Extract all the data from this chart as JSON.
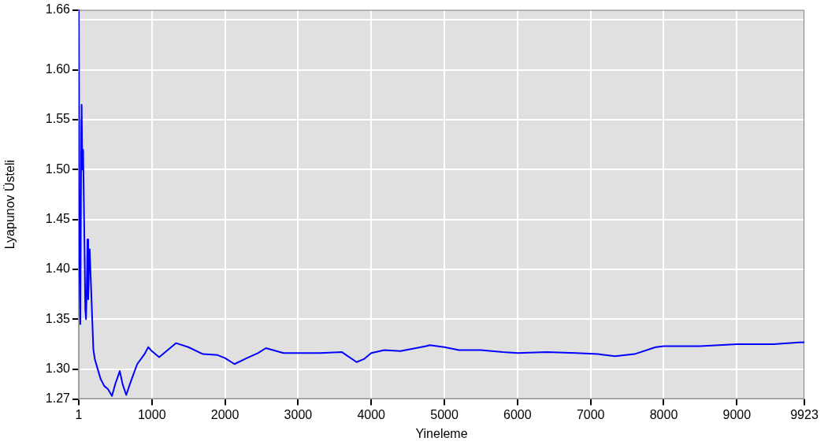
{
  "chart_data": {
    "type": "line",
    "xlabel": "Yineleme",
    "ylabel": "Lyapunov Üsteli",
    "xlim": [
      1,
      9923
    ],
    "xticks": [
      1,
      1000,
      2000,
      3000,
      4000,
      5000,
      6000,
      7000,
      8000,
      9000,
      9923
    ],
    "ylim": [
      1.27,
      1.66
    ],
    "yticks": [
      1.27,
      {
        "value": 1.3,
        "label": "1.30"
      },
      1.35,
      {
        "value": 1.4,
        "label": "1.40"
      },
      1.45,
      {
        "value": 1.5,
        "label": "1.50"
      },
      1.55,
      {
        "value": 1.6,
        "label": "1.60"
      },
      {
        "value": 1.65,
        "label": null
      },
      1.66
    ],
    "grid": true,
    "legend": false,
    "marker": "none",
    "line_style": "solid",
    "series": [
      {
        "color": "#0000ff",
        "x": [
          1,
          12,
          22,
          30,
          36,
          40,
          50,
          60,
          70,
          80,
          90,
          100,
          110,
          120,
          130,
          140,
          150,
          160,
          170,
          180,
          190,
          200,
          220,
          260,
          300,
          350,
          400,
          455,
          500,
          562,
          600,
          650,
          700,
          750,
          800,
          900,
          951,
          1000,
          1100,
          1200,
          1330,
          1500,
          1700,
          1900,
          2000,
          2130,
          2300,
          2450,
          2560,
          2800,
          3000,
          3300,
          3600,
          3800,
          3900,
          4000,
          4180,
          4400,
          4750,
          4800,
          5000,
          5200,
          5500,
          5800,
          6000,
          6400,
          6800,
          7100,
          7335,
          7600,
          7890,
          8000,
          8500,
          9000,
          9500,
          9923
        ],
        "values": [
          1.66,
          1.394,
          1.345,
          1.46,
          1.55,
          1.565,
          1.5,
          1.52,
          1.47,
          1.42,
          1.36,
          1.35,
          1.38,
          1.43,
          1.37,
          1.4,
          1.42,
          1.4,
          1.38,
          1.36,
          1.34,
          1.32,
          1.31,
          1.3,
          1.29,
          1.283,
          1.28,
          1.273,
          1.285,
          1.298,
          1.285,
          1.274,
          1.285,
          1.295,
          1.305,
          1.315,
          1.322,
          1.318,
          1.312,
          1.318,
          1.326,
          1.322,
          1.315,
          1.314,
          1.311,
          1.305,
          1.311,
          1.316,
          1.321,
          1.316,
          1.316,
          1.316,
          1.317,
          1.307,
          1.31,
          1.316,
          1.319,
          1.318,
          1.323,
          1.324,
          1.322,
          1.319,
          1.319,
          1.317,
          1.316,
          1.317,
          1.316,
          1.315,
          1.313,
          1.315,
          1.322,
          1.323,
          1.323,
          1.325,
          1.325,
          1.327
        ]
      }
    ]
  }
}
